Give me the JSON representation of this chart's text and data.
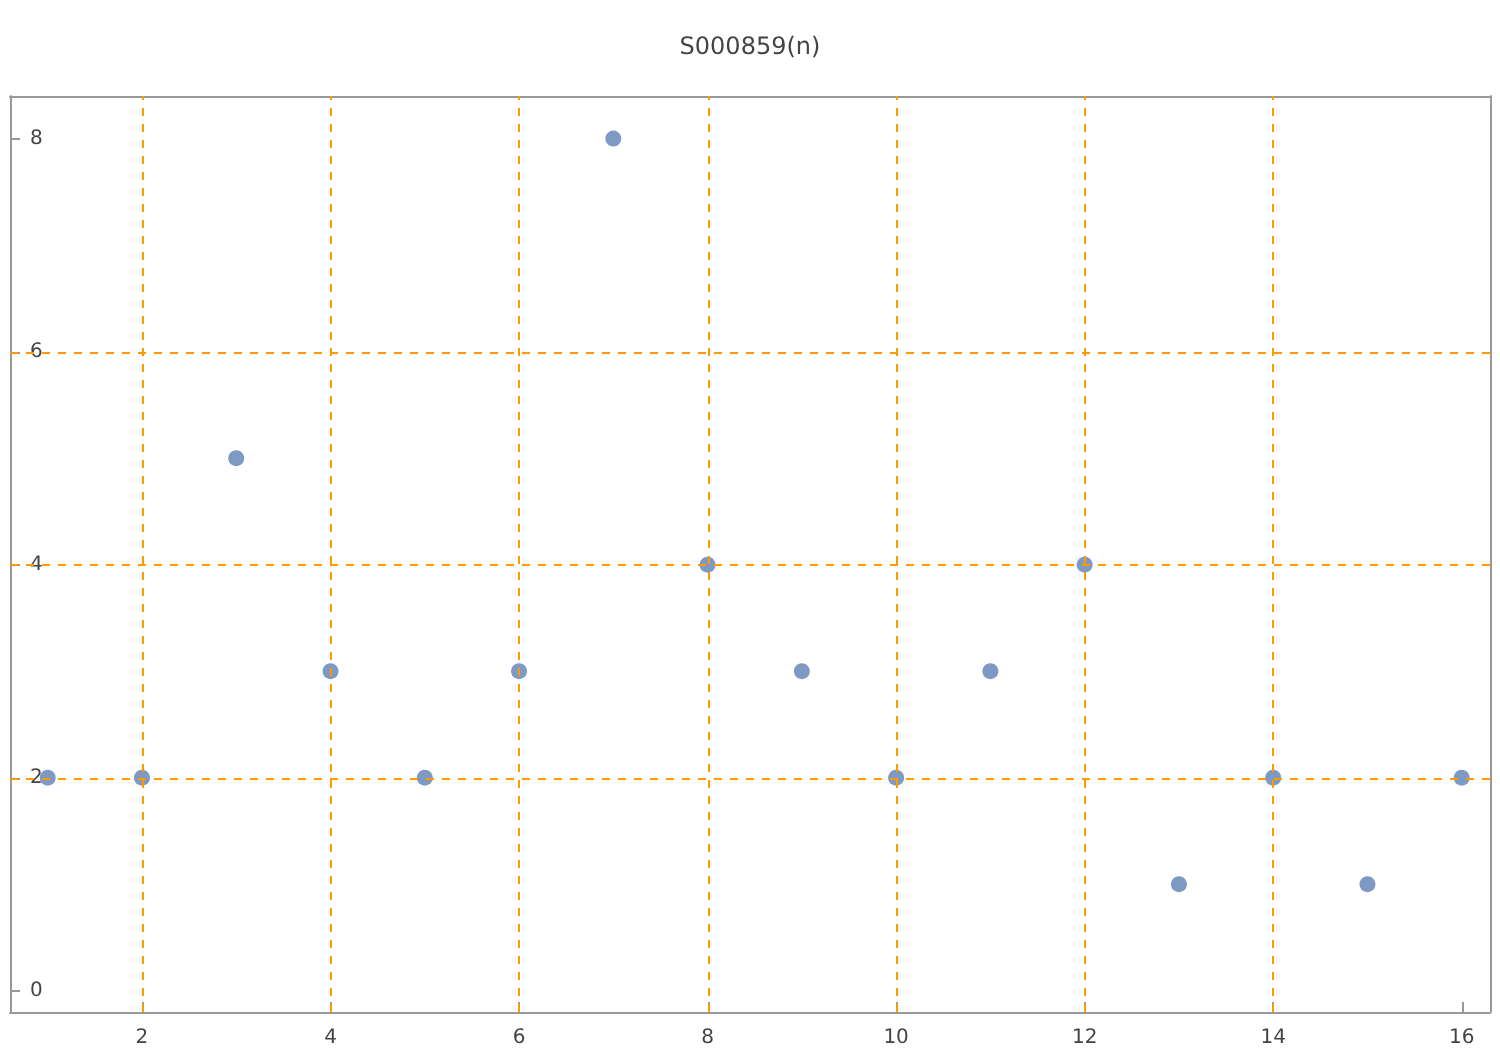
{
  "chart_data": {
    "type": "scatter",
    "title": "S000859(n)",
    "x": [
      1,
      2,
      3,
      4,
      5,
      6,
      7,
      8,
      9,
      10,
      11,
      12,
      13,
      14,
      15,
      16
    ],
    "series": [
      {
        "color": "#5e81b5",
        "values": [
          2,
          2,
          5,
          3,
          2,
          3,
          8,
          4,
          3,
          2,
          3,
          4,
          1,
          2,
          1,
          2
        ]
      }
    ],
    "xlim": [
      0.6,
      16.3
    ],
    "xticks": [
      2,
      4,
      6,
      8,
      10,
      12,
      14,
      16
    ],
    "ylim": [
      -0.2,
      8.4
    ],
    "yticks": [
      0,
      2,
      4,
      6,
      8
    ],
    "grid": false,
    "marker": "circle",
    "ref_lines": [
      {
        "axis": "y",
        "value": 2,
        "color": "#ff9900",
        "line_style": "dashed"
      },
      {
        "axis": "y",
        "value": 4,
        "color": "#ff9900",
        "line_style": "dashed"
      },
      {
        "axis": "y",
        "value": 6,
        "color": "#ff9900",
        "line_style": "dashed"
      },
      {
        "axis": "x",
        "value": 2,
        "color": "#ff9900",
        "line_style": "dashed"
      },
      {
        "axis": "x",
        "value": 4,
        "color": "#ff9900",
        "line_style": "dashed"
      },
      {
        "axis": "x",
        "value": 6,
        "color": "#ff9900",
        "line_style": "dashed"
      },
      {
        "axis": "x",
        "value": 8,
        "color": "#ff9900",
        "line_style": "dashed"
      },
      {
        "axis": "x",
        "value": 10,
        "color": "#ff9900",
        "line_style": "dashed"
      },
      {
        "axis": "x",
        "value": 12,
        "color": "#ff9900",
        "line_style": "dashed"
      },
      {
        "axis": "x",
        "value": 14,
        "color": "#ff9900",
        "line_style": "dashed"
      }
    ]
  }
}
